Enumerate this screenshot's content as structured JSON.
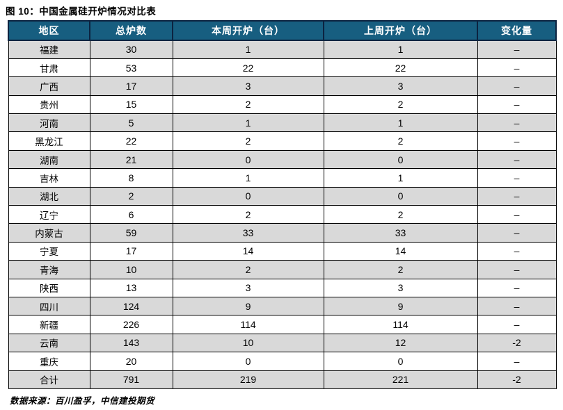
{
  "title": "图 10：中国金属硅开炉情况对比表",
  "footer": {
    "source": "数据来源：百川盈孚，中信建投期货"
  },
  "colors": {
    "header_bg": "#175e80",
    "header_border": "#0c2340",
    "header_text": "#ffffff",
    "row_alt_bg": "#d9d9d9",
    "grid_border": "#000000"
  },
  "chart_data": {
    "type": "table",
    "title": "图 10：中国金属硅开炉情况对比表",
    "columns": [
      "地区",
      "总炉数",
      "本周开炉（台）",
      "上周开炉（台）",
      "变化量"
    ],
    "rows": [
      [
        "福建",
        "30",
        "1",
        "1",
        "–"
      ],
      [
        "甘肃",
        "53",
        "22",
        "22",
        "–"
      ],
      [
        "广西",
        "17",
        "3",
        "3",
        "–"
      ],
      [
        "贵州",
        "15",
        "2",
        "2",
        "–"
      ],
      [
        "河南",
        "5",
        "1",
        "1",
        "–"
      ],
      [
        "黑龙江",
        "22",
        "2",
        "2",
        "–"
      ],
      [
        "湖南",
        "21",
        "0",
        "0",
        "–"
      ],
      [
        "吉林",
        "8",
        "1",
        "1",
        "–"
      ],
      [
        "湖北",
        "2",
        "0",
        "0",
        "–"
      ],
      [
        "辽宁",
        "6",
        "2",
        "2",
        "–"
      ],
      [
        "内蒙古",
        "59",
        "33",
        "33",
        "–"
      ],
      [
        "宁夏",
        "17",
        "14",
        "14",
        "–"
      ],
      [
        "青海",
        "10",
        "2",
        "2",
        "–"
      ],
      [
        "陕西",
        "13",
        "3",
        "3",
        "–"
      ],
      [
        "四川",
        "124",
        "9",
        "9",
        "–"
      ],
      [
        "新疆",
        "226",
        "114",
        "114",
        "–"
      ],
      [
        "云南",
        "143",
        "10",
        "12",
        "-2"
      ],
      [
        "重庆",
        "20",
        "0",
        "0",
        "–"
      ],
      [
        "合计",
        "791",
        "219",
        "221",
        "-2"
      ]
    ],
    "layout": {
      "alternating_row_shading": true,
      "shaded_rows": "odd",
      "totals_row": "合计",
      "legend": "none",
      "grid": true
    }
  }
}
